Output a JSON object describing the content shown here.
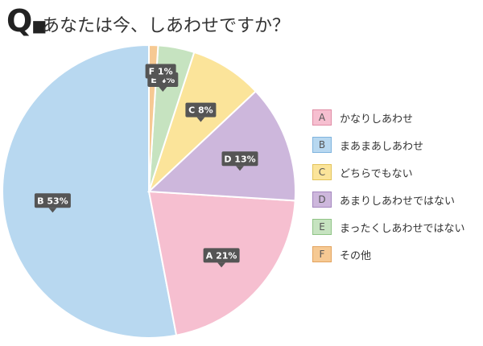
{
  "question": {
    "mark": "Q",
    "text": "あなたは今、しあわせですか？"
  },
  "chart_data": {
    "type": "pie",
    "title": "あなたは今、しあわせですか？",
    "start_angle_deg": 0,
    "direction": "counterclockwise",
    "slices": [
      {
        "key": "B",
        "name": "まあまあしあわせ",
        "value": 53,
        "label": "B 53%",
        "color": "#b8d8f0",
        "border": "#7fb4de"
      },
      {
        "key": "A",
        "name": "かなりしあわせ",
        "value": 21,
        "label": "A 21%",
        "color": "#f6bfd0",
        "border": "#e08ca5"
      },
      {
        "key": "D",
        "name": "あまりしあわせではない",
        "value": 13,
        "label": "D 13%",
        "color": "#cdb7dc",
        "border": "#a487bf"
      },
      {
        "key": "C",
        "name": "どちらでもない",
        "value": 8,
        "label": "C 8%",
        "color": "#fbe49a",
        "border": "#e3c35a"
      },
      {
        "key": "E",
        "name": "まったくしあわせではない",
        "value": 4,
        "label": "E 4%",
        "color": "#c6e3c0",
        "border": "#8fc486"
      },
      {
        "key": "F",
        "name": "その他",
        "value": 1,
        "label": "F 1%",
        "color": "#f6c993",
        "border": "#e3a35e"
      }
    ],
    "legend_order": [
      "A",
      "B",
      "C",
      "D",
      "E",
      "F"
    ],
    "legend_position": "right",
    "label_style": {
      "background": "#555555",
      "text": "#ffffff"
    }
  }
}
